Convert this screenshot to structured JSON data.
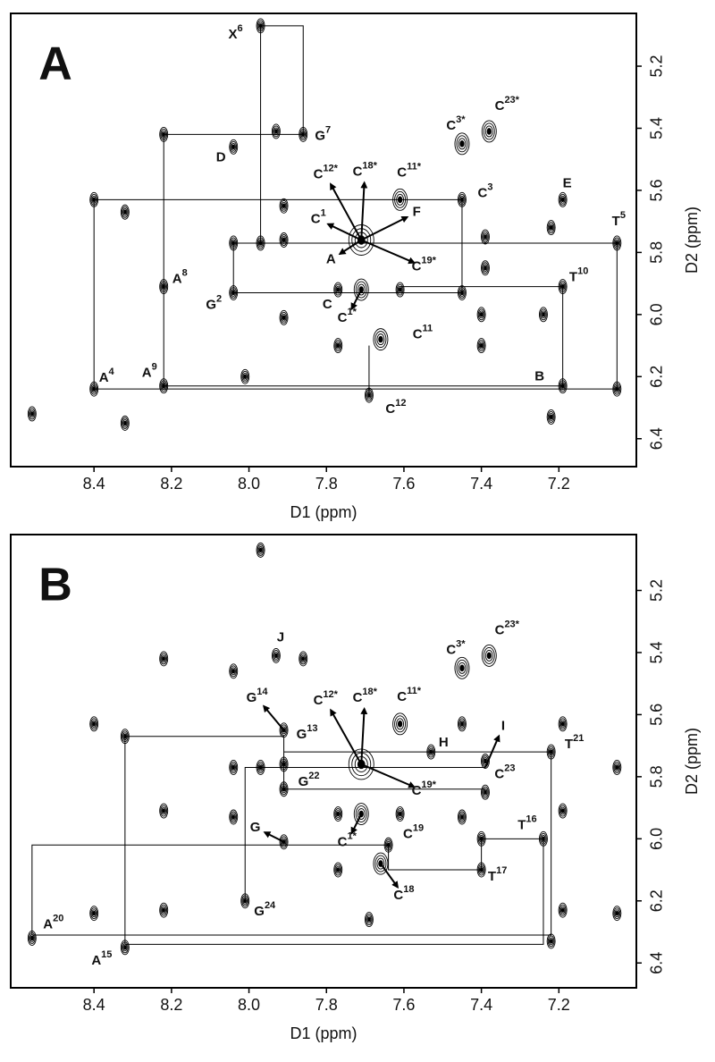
{
  "chart_data": [
    {
      "type": "scatter",
      "panel": "A",
      "xlabel": "D1 (ppm)",
      "ylabel": "D2 (ppm)",
      "xlim": [
        8.615,
        7.0
      ],
      "ylim": [
        5.03,
        6.49
      ],
      "xticks": [
        8.4,
        8.2,
        {
          "value": 8,
          "label": "8.0"
        },
        7.8,
        7.6,
        7.4,
        7.2
      ],
      "yticks": [
        5.2,
        5.4,
        5.6,
        5.8,
        {
          "value": 6,
          "label": "6.0"
        },
        6.2,
        6.4
      ],
      "x": [
        8.56,
        8.4,
        8.4,
        8.32,
        8.32,
        8.22,
        8.22,
        8.22,
        8.04,
        8.04,
        8.04,
        8.01,
        7.97,
        7.97,
        7.93,
        7.91,
        7.91,
        7.91,
        7.86,
        7.71,
        7.71,
        7.77,
        7.77,
        7.66,
        7.69,
        7.61,
        7.61,
        7.45,
        7.38,
        7.45,
        7.45,
        7.39,
        7.39,
        7.4,
        7.4,
        7.24,
        7.22,
        7.19,
        7.19,
        7.19,
        7.22,
        7.05,
        7.05
      ],
      "values": [
        6.32,
        5.63,
        6.24,
        5.67,
        6.35,
        5.42,
        5.91,
        6.23,
        5.46,
        5.77,
        5.93,
        6.2,
        5.07,
        5.77,
        5.41,
        5.65,
        5.76,
        6.01,
        5.42,
        5.76,
        5.92,
        5.92,
        6.1,
        6.08,
        6.26,
        5.63,
        5.92,
        5.45,
        5.41,
        5.63,
        5.93,
        5.75,
        5.85,
        6.0,
        6.1,
        6.0,
        5.72,
        5.63,
        5.91,
        6.23,
        6.33,
        5.77,
        6.24
      ],
      "lines": [
        {
          "x": [
            7.86,
            7.86,
            7.97,
            7.97
          ],
          "values": [
            5.42,
            5.07,
            5.07,
            5.77
          ]
        },
        {
          "x": [
            7.86,
            8.22,
            8.22
          ],
          "values": [
            5.42,
            5.42,
            6.23
          ]
        },
        {
          "x": [
            7.45,
            7.45,
            8.4,
            8.4
          ],
          "values": [
            5.93,
            5.63,
            5.63,
            6.24
          ]
        },
        {
          "x": [
            7.97,
            7.05,
            7.05
          ],
          "values": [
            5.77,
            5.77,
            6.24
          ]
        },
        {
          "x": [
            7.45,
            8.04,
            8.04,
            7.97
          ],
          "values": [
            5.93,
            5.93,
            5.77,
            5.77
          ]
        },
        {
          "x": [
            8.4,
            7.05
          ],
          "values": [
            6.24,
            6.24
          ]
        },
        {
          "x": [
            8.22,
            7.19,
            7.19,
            7.61
          ],
          "values": [
            6.23,
            6.23,
            5.91,
            5.91
          ]
        },
        {
          "x": [
            7.69,
            7.69
          ],
          "values": [
            6.1,
            6.26
          ]
        }
      ],
      "annotations": [
        {
          "text": "A",
          "sup": "4",
          "x": 8.4,
          "y": 6.24
        },
        {
          "text": "A",
          "sup": "8",
          "x": 8.22,
          "y": 5.91
        },
        {
          "text": "A",
          "sup": "9",
          "x": 8.22,
          "y": 6.23
        },
        {
          "text": "D",
          "x": 8.04,
          "y": 5.46
        },
        {
          "text": "G",
          "sup": "2",
          "x": 8.04,
          "y": 5.93
        },
        {
          "text": "X",
          "sup": "6",
          "x": 7.97,
          "y": 5.07
        },
        {
          "text": "G",
          "sup": "7",
          "x": 7.86,
          "y": 5.42
        },
        {
          "text": "C",
          "sup": "12*",
          "x": 7.71,
          "y": 5.76
        },
        {
          "text": "C",
          "sup": "18*",
          "x": 7.71,
          "y": 5.76
        },
        {
          "text": "C",
          "sup": "1",
          "x": 7.71,
          "y": 5.76
        },
        {
          "text": "A",
          "x": 7.71,
          "y": 5.76
        },
        {
          "text": "F",
          "x": 7.71,
          "y": 5.76
        },
        {
          "text": "C",
          "sup": "19*",
          "x": 7.71,
          "y": 5.76
        },
        {
          "text": "C",
          "sup": "11*",
          "x": 7.61,
          "y": 5.63
        },
        {
          "text": "C",
          "x": 7.77,
          "y": 5.92
        },
        {
          "text": "C",
          "sup": "1*",
          "x": 7.71,
          "y": 5.92
        },
        {
          "text": "C",
          "sup": "11",
          "x": 7.66,
          "y": 6.08
        },
        {
          "text": "C",
          "sup": "12",
          "x": 7.69,
          "y": 6.26
        },
        {
          "text": "C",
          "sup": "3*",
          "x": 7.45,
          "y": 5.45
        },
        {
          "text": "C",
          "sup": "23*",
          "x": 7.38,
          "y": 5.41
        },
        {
          "text": "C",
          "sup": "3",
          "x": 7.45,
          "y": 5.63
        },
        {
          "text": "E",
          "x": 7.19,
          "y": 5.63
        },
        {
          "text": "T",
          "sup": "10",
          "x": 7.19,
          "y": 5.91
        },
        {
          "text": "B",
          "x": 7.19,
          "y": 6.23
        },
        {
          "text": "T",
          "sup": "5",
          "x": 7.05,
          "y": 5.77
        }
      ]
    },
    {
      "type": "scatter",
      "panel": "B",
      "xlabel": "D1 (ppm)",
      "ylabel": "D2 (ppm)",
      "xlim": [
        8.615,
        7.0
      ],
      "ylim": [
        5.02,
        6.48
      ],
      "xticks": [
        8.4,
        8.2,
        {
          "value": 8,
          "label": "8.0"
        },
        7.8,
        7.6,
        7.4,
        7.2
      ],
      "yticks": [
        5.2,
        5.4,
        5.6,
        5.8,
        {
          "value": 6,
          "label": "6.0"
        },
        6.2,
        6.4
      ],
      "x": [
        8.56,
        8.4,
        8.4,
        8.32,
        8.32,
        8.22,
        8.22,
        8.22,
        8.04,
        8.04,
        8.04,
        8.01,
        7.97,
        7.97,
        7.93,
        7.91,
        7.91,
        7.91,
        7.86,
        7.71,
        7.71,
        7.77,
        7.77,
        7.66,
        7.69,
        7.61,
        7.61,
        7.45,
        7.38,
        7.45,
        7.45,
        7.39,
        7.39,
        7.4,
        7.4,
        7.24,
        7.22,
        7.19,
        7.19,
        7.19,
        7.22,
        7.05,
        7.05,
        7.91,
        7.53,
        7.64
      ],
      "values": [
        6.32,
        5.63,
        6.24,
        5.67,
        6.35,
        5.42,
        5.91,
        6.23,
        5.46,
        5.77,
        5.93,
        6.2,
        5.07,
        5.77,
        5.41,
        5.65,
        5.76,
        6.01,
        5.42,
        5.76,
        5.92,
        5.92,
        6.1,
        6.08,
        6.26,
        5.63,
        5.92,
        5.45,
        5.41,
        5.63,
        5.93,
        5.75,
        5.85,
        6.0,
        6.1,
        6.0,
        5.72,
        5.63,
        5.91,
        6.23,
        6.33,
        5.77,
        6.24,
        5.84,
        5.72,
        6.02
      ],
      "lines": [
        {
          "x": [
            8.56,
            8.56,
            7.64
          ],
          "values": [
            6.31,
            6.02,
            6.02
          ]
        },
        {
          "x": [
            8.56,
            7.22
          ],
          "values": [
            6.31,
            6.31
          ]
        },
        {
          "x": [
            7.22,
            7.22,
            7.91
          ],
          "values": [
            6.31,
            5.72,
            5.72
          ]
        },
        {
          "x": [
            8.32,
            7.24,
            7.24,
            7.4,
            7.4
          ],
          "values": [
            6.34,
            6.34,
            6.0,
            6.0,
            6.1
          ]
        },
        {
          "x": [
            8.32,
            8.32,
            7.91,
            7.91
          ],
          "values": [
            6.34,
            5.67,
            5.67,
            5.84
          ]
        },
        {
          "x": [
            7.91,
            7.39
          ],
          "values": [
            5.84,
            5.84
          ]
        },
        {
          "x": [
            8.01,
            8.01,
            7.39
          ],
          "values": [
            6.2,
            5.77,
            5.77
          ]
        },
        {
          "x": [
            7.4,
            7.64,
            7.64
          ],
          "values": [
            6.1,
            6.1,
            6.02
          ]
        }
      ],
      "annotations": [
        {
          "text": "A",
          "sup": "20",
          "x": 8.56,
          "y": 6.32
        },
        {
          "text": "A",
          "sup": "15",
          "x": 8.32,
          "y": 6.35
        },
        {
          "text": "J",
          "x": 7.93,
          "y": 5.41
        },
        {
          "text": "G",
          "sup": "13",
          "x": 7.91,
          "y": 5.65
        },
        {
          "text": "G",
          "sup": "14",
          "x": 7.91,
          "y": 5.65
        },
        {
          "text": "C",
          "sup": "12*",
          "x": 7.71,
          "y": 5.76
        },
        {
          "text": "C",
          "sup": "18*",
          "x": 7.71,
          "y": 5.76
        },
        {
          "text": "C",
          "sup": "11*",
          "x": 7.61,
          "y": 5.63
        },
        {
          "text": "H",
          "x": 7.53,
          "y": 5.72
        },
        {
          "text": "C",
          "sup": "19*",
          "x": 7.71,
          "y": 5.76
        },
        {
          "text": "G",
          "sup": "22",
          "x": 7.91,
          "y": 5.84
        },
        {
          "text": "G",
          "sup": "24",
          "x": 8.01,
          "y": 6.2
        },
        {
          "text": "G",
          "x": 7.91,
          "y": 6.01
        },
        {
          "text": "C",
          "sup": "1*",
          "x": 7.71,
          "y": 5.92
        },
        {
          "text": "C",
          "sup": "19",
          "x": 7.64,
          "y": 6.02
        },
        {
          "text": "C",
          "sup": "18",
          "x": 7.66,
          "y": 6.08
        },
        {
          "text": "C",
          "sup": "3*",
          "x": 7.45,
          "y": 5.45
        },
        {
          "text": "C",
          "sup": "23*",
          "x": 7.38,
          "y": 5.41
        },
        {
          "text": "C",
          "sup": "23",
          "x": 7.39,
          "y": 5.77
        },
        {
          "text": "I",
          "x": 7.39,
          "y": 5.77
        },
        {
          "text": "T",
          "sup": "21",
          "x": 7.22,
          "y": 5.72
        },
        {
          "text": "T",
          "sup": "16",
          "x": 7.24,
          "y": 6.0
        },
        {
          "text": "T",
          "sup": "17",
          "x": 7.4,
          "y": 6.1
        }
      ]
    }
  ]
}
